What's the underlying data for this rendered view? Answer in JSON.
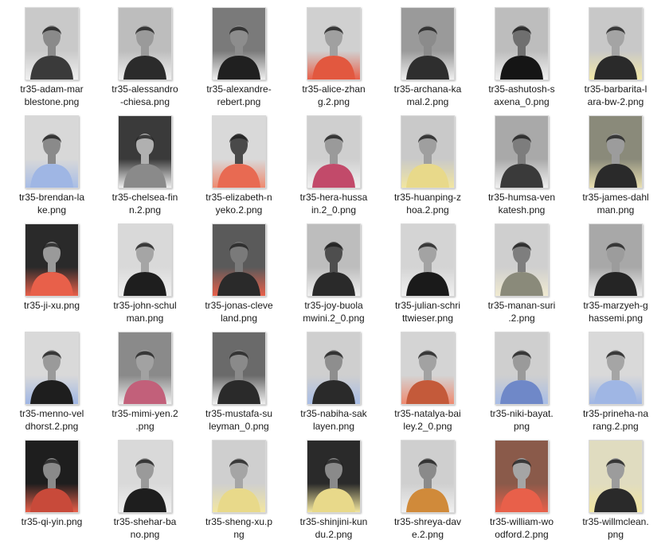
{
  "window": {
    "view": "file-thumbnail-grid"
  },
  "files": [
    {
      "name": "tr35-adam-marblestone.png",
      "label_lines": [
        "tr35-adam-mar",
        "blestone.png"
      ],
      "icon": "image-file-icon",
      "tint": "#f0f0f0",
      "bg": "#c9c9c9",
      "shirt": "#3a3a3a",
      "skin": "#8a8a8a"
    },
    {
      "name": "tr35-alessandro-chiesa.png",
      "label_lines": [
        "tr35-alessandro",
        "-chiesa.png"
      ],
      "icon": "image-file-icon",
      "tint": "#f0f0f0",
      "bg": "#bdbdbd",
      "shirt": "#2b2b2b",
      "skin": "#9a9a9a"
    },
    {
      "name": "tr35-alexandre-rebert.png",
      "label_lines": [
        "tr35-alexandre-",
        "rebert.png"
      ],
      "icon": "image-file-icon",
      "tint": "#f0f0f0",
      "bg": "#7a7a7a",
      "shirt": "#202020",
      "skin": "#8d8d8d"
    },
    {
      "name": "tr35-alice-zhang.2.png",
      "label_lines": [
        "tr35-alice-zhan",
        "g.2.png"
      ],
      "icon": "image-file-icon",
      "tint": "#e8604a",
      "bg": "#d0d0d0",
      "shirt": "#e2583f",
      "skin": "#a0a0a0"
    },
    {
      "name": "tr35-archana-kamal.2.png",
      "label_lines": [
        "tr35-archana-ka",
        "mal.2.png"
      ],
      "icon": "image-file-icon",
      "tint": "#f0f0f0",
      "bg": "#9a9a9a",
      "shirt": "#2e2e2e",
      "skin": "#8b8b8b"
    },
    {
      "name": "tr35-ashutosh-saxena_0.png",
      "label_lines": [
        "tr35-ashutosh-s",
        "axena_0.png"
      ],
      "icon": "image-file-icon",
      "tint": "#f0f0f0",
      "bg": "#bdbdbd",
      "shirt": "#151515",
      "skin": "#6f6f6f"
    },
    {
      "name": "tr35-barbarita-lara-bw-2.png",
      "label_lines": [
        "tr35-barbarita-l",
        "ara-bw-2.png"
      ],
      "icon": "image-file-icon",
      "tint": "#f3e9a8",
      "bg": "#c8c8c8",
      "shirt": "#2a2a2a",
      "skin": "#a4a4a4"
    },
    {
      "name": "tr35-brendan-lake.png",
      "label_lines": [
        "tr35-brendan-la",
        "ke.png"
      ],
      "icon": "image-file-icon",
      "tint": "#a8bde6",
      "bg": "#d8d8d8",
      "shirt": "#9fb6e4",
      "skin": "#8a8a8a"
    },
    {
      "name": "tr35-chelsea-finn.2.png",
      "label_lines": [
        "tr35-chelsea-fin",
        "n.2.png"
      ],
      "icon": "image-file-icon",
      "tint": "#f0f0f0",
      "bg": "#3a3a3a",
      "shirt": "#8a8a8a",
      "skin": "#b0b0b0"
    },
    {
      "name": "tr35-elizabeth-nyeko.2.png",
      "label_lines": [
        "tr35-elizabeth-n",
        "yeko.2.png"
      ],
      "icon": "image-file-icon",
      "tint": "#ee8a70",
      "bg": "#d9d9d9",
      "shirt": "#e86a52",
      "skin": "#4a4a4a"
    },
    {
      "name": "tr35-hera-hussain.2_0.png",
      "label_lines": [
        "tr35-hera-hussa",
        "in.2_0.png"
      ],
      "icon": "image-file-icon",
      "tint": "#f0f0f0",
      "bg": "#cfcfcf",
      "shirt": "#c24a6a",
      "skin": "#9a9a9a"
    },
    {
      "name": "tr35-huanping-zhoa.2.png",
      "label_lines": [
        "tr35-huanping-z",
        "hoa.2.png"
      ],
      "icon": "image-file-icon",
      "tint": "#f2e6a0",
      "bg": "#c9c9c9",
      "shirt": "#e8d98a",
      "skin": "#9f9f9f"
    },
    {
      "name": "tr35-humsa-venkatesh.png",
      "label_lines": [
        "tr35-humsa-ven",
        "katesh.png"
      ],
      "icon": "image-file-icon",
      "tint": "#f0f0f0",
      "bg": "#a9a9a9",
      "shirt": "#3a3a3a",
      "skin": "#7d7d7d"
    },
    {
      "name": "tr35-james-dahlman.png",
      "label_lines": [
        "tr35-james-dahl",
        "man.png"
      ],
      "icon": "image-file-icon",
      "tint": "#e9e0b0",
      "bg": "#8a8a7a",
      "shirt": "#2a2a2a",
      "skin": "#9c9c9c"
    },
    {
      "name": "tr35-ji-xu.png",
      "label_lines": [
        "tr35-ji-xu.png"
      ],
      "icon": "image-file-icon",
      "tint": "#e8604a",
      "bg": "#2a2a2a",
      "shirt": "#e8604a",
      "skin": "#9a9a9a"
    },
    {
      "name": "tr35-john-schulman.png",
      "label_lines": [
        "tr35-john-schul",
        "man.png"
      ],
      "icon": "image-file-icon",
      "tint": "#f0f0f0",
      "bg": "#d9d9d9",
      "shirt": "#1e1e1e",
      "skin": "#a5a5a5"
    },
    {
      "name": "tr35-jonas-cleveland.png",
      "label_lines": [
        "tr35-jonas-cleve",
        "land.png"
      ],
      "icon": "image-file-icon",
      "tint": "#e8604a",
      "bg": "#5a5a5a",
      "shirt": "#2a2a2a",
      "skin": "#7a7a7a"
    },
    {
      "name": "tr35-joy-buolamwini.2_0.png",
      "label_lines": [
        "tr35-joy-buola",
        "mwini.2_0.png"
      ],
      "icon": "image-file-icon",
      "tint": "#f0f0f0",
      "bg": "#bdbdbd",
      "shirt": "#2a2a2a",
      "skin": "#4e4e4e"
    },
    {
      "name": "tr35-julian-schrittwieser.png",
      "label_lines": [
        "tr35-julian-schri",
        "ttwieser.png"
      ],
      "icon": "image-file-icon",
      "tint": "#f0f0f0",
      "bg": "#d4d4d4",
      "shirt": "#1a1a1a",
      "skin": "#a3a3a3"
    },
    {
      "name": "tr35-manan-suri.2.png",
      "label_lines": [
        "tr35-manan-suri",
        ".2.png"
      ],
      "icon": "image-file-icon",
      "tint": "#f0ead0",
      "bg": "#cfcfcf",
      "shirt": "#8a8a7a",
      "skin": "#7e7e7e"
    },
    {
      "name": "tr35-marzyeh-ghassemi.png",
      "label_lines": [
        "tr35-marzyeh-g",
        "hassemi.png"
      ],
      "icon": "image-file-icon",
      "tint": "#f0f0f0",
      "bg": "#a8a8a8",
      "shirt": "#252525",
      "skin": "#9c9c9c"
    },
    {
      "name": "tr35-menno-veldhorst.2.png",
      "label_lines": [
        "tr35-menno-vel",
        "dhorst.2.png"
      ],
      "icon": "image-file-icon",
      "tint": "#9fb6e4",
      "bg": "#d9d9d9",
      "shirt": "#1e1e1e",
      "skin": "#9a9a9a"
    },
    {
      "name": "tr35-mimi-yen.2.png",
      "label_lines": [
        "tr35-mimi-yen.2",
        ".png"
      ],
      "icon": "image-file-icon",
      "tint": "#f0f0f0",
      "bg": "#8a8a8a",
      "shirt": "#c2607a",
      "skin": "#a2a2a2"
    },
    {
      "name": "tr35-mustafa-suleyman_0.png",
      "label_lines": [
        "tr35-mustafa-su",
        "leyman_0.png"
      ],
      "icon": "image-file-icon",
      "tint": "#f0f0f0",
      "bg": "#6a6a6a",
      "shirt": "#2a2a2a",
      "skin": "#8a8a8a"
    },
    {
      "name": "tr35-nabiha-saklayen.png",
      "label_lines": [
        "tr35-nabiha-sak",
        "layen.png"
      ],
      "icon": "image-file-icon",
      "tint": "#a8bde6",
      "bg": "#cfcfcf",
      "shirt": "#2a2a2a",
      "skin": "#8e8e8e"
    },
    {
      "name": "tr35-natalya-bailey.2_0.png",
      "label_lines": [
        "tr35-natalya-bai",
        "ley.2_0.png"
      ],
      "icon": "image-file-icon",
      "tint": "#ee8a70",
      "bg": "#d4d4d4",
      "shirt": "#c45a3a",
      "skin": "#a2a2a2"
    },
    {
      "name": "tr35-niki-bayat.png",
      "label_lines": [
        "tr35-niki-bayat.",
        "png"
      ],
      "icon": "image-file-icon",
      "tint": "#a8bde6",
      "bg": "#cfcfcf",
      "shirt": "#6f88c8",
      "skin": "#9a9a9a"
    },
    {
      "name": "tr35-prineha-narang.2.png",
      "label_lines": [
        "tr35-prineha-na",
        "rang.2.png"
      ],
      "icon": "image-file-icon",
      "tint": "#9fb6e4",
      "bg": "#d9d9d9",
      "shirt": "#9fb6e4",
      "skin": "#a5a5a5"
    },
    {
      "name": "tr35-qi-yin.png",
      "label_lines": [
        "tr35-qi-yin.png"
      ],
      "icon": "image-file-icon",
      "tint": "#e8604a",
      "bg": "#1e1e1e",
      "shirt": "#c84a3a",
      "skin": "#8a8a8a"
    },
    {
      "name": "tr35-shehar-bano.png",
      "label_lines": [
        "tr35-shehar-ba",
        "no.png"
      ],
      "icon": "image-file-icon",
      "tint": "#f0f0f0",
      "bg": "#d9d9d9",
      "shirt": "#1e1e1e",
      "skin": "#9a9a9a"
    },
    {
      "name": "tr35-sheng-xu.png",
      "label_lines": [
        "tr35-sheng-xu.p",
        "ng"
      ],
      "icon": "image-file-icon",
      "tint": "#f2e6a0",
      "bg": "#cfcfcf",
      "shirt": "#e8d98a",
      "skin": "#a5a5a5"
    },
    {
      "name": "tr35-shinjini-kundu.2.png",
      "label_lines": [
        "tr35-shinjini-kun",
        "du.2.png"
      ],
      "icon": "image-file-icon",
      "tint": "#f2e6a0",
      "bg": "#2a2a2a",
      "shirt": "#e8d98a",
      "skin": "#8a8a8a"
    },
    {
      "name": "tr35-shreya-dave.2.png",
      "label_lines": [
        "tr35-shreya-dav",
        "e.2.png"
      ],
      "icon": "image-file-icon",
      "tint": "#f0f0f0",
      "bg": "#cfcfcf",
      "shirt": "#d08a3a",
      "skin": "#8a8a8a"
    },
    {
      "name": "tr35-william-woodford.2.png",
      "label_lines": [
        "tr35-william-wo",
        "odford.2.png"
      ],
      "icon": "image-file-icon",
      "tint": "#e8604a",
      "bg": "#8a5a4a",
      "shirt": "#e8604a",
      "skin": "#a5a5a5"
    },
    {
      "name": "tr35-willmclean.png",
      "label_lines": [
        "tr35-willmclean.",
        "png"
      ],
      "icon": "image-file-icon",
      "tint": "#f2e6a0",
      "bg": "#e0dcc0",
      "shirt": "#2a2a2a",
      "skin": "#9c9c9c"
    }
  ]
}
